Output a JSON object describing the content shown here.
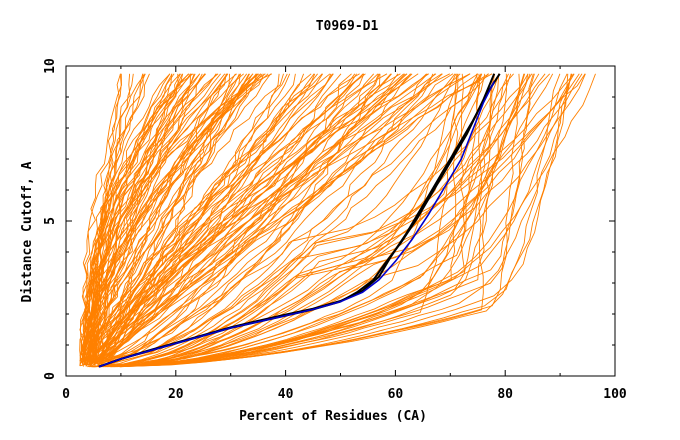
{
  "chart_data": {
    "type": "line",
    "title": "T0969-D1",
    "xlabel": "Percent of Residues (CA)",
    "ylabel": "Distance Cutoff, A",
    "xlim": [
      0,
      100
    ],
    "ylim": [
      0,
      10
    ],
    "x_ticks": [
      0,
      20,
      40,
      60,
      80,
      100
    ],
    "y_ticks": [
      0,
      5,
      10
    ],
    "x_tick_labels": [
      "0",
      "20",
      "40",
      "60",
      "80",
      "100"
    ],
    "y_tick_labels": [
      "0",
      "5",
      "10"
    ],
    "y_max_plotted": 9.75,
    "grid": false,
    "colors": {
      "background_models": "#ff8000",
      "highlight_black": "#000000",
      "highlight_blue": "#0000cc"
    },
    "series_families": [
      {
        "name": "steep-left-group",
        "count": 55,
        "start": [
          3,
          0.3
        ],
        "mid": [
          8,
          6
        ],
        "end": [
          25,
          9.75
        ],
        "color": "#ff8000"
      },
      {
        "name": "central-fan-group",
        "count": 75,
        "start": [
          3,
          0.3
        ],
        "mid": [
          35,
          4.5
        ],
        "end": [
          70,
          9.75
        ],
        "color": "#ff8000"
      },
      {
        "name": "right-shallow-group",
        "count": 45,
        "start": [
          5,
          0.3
        ],
        "mid": [
          60,
          3.5
        ],
        "end": [
          97,
          9.75
        ],
        "color": "#ff8000"
      }
    ],
    "series": [
      {
        "name": "highlight-black-1",
        "color": "#000000",
        "points": [
          [
            6,
            0.3
          ],
          [
            10,
            0.55
          ],
          [
            15,
            0.8
          ],
          [
            20,
            1.05
          ],
          [
            25,
            1.3
          ],
          [
            30,
            1.55
          ],
          [
            35,
            1.75
          ],
          [
            40,
            1.95
          ],
          [
            45,
            2.15
          ],
          [
            50,
            2.4
          ],
          [
            53,
            2.7
          ],
          [
            56,
            3.1
          ],
          [
            58,
            3.6
          ],
          [
            61,
            4.3
          ],
          [
            64,
            5.1
          ],
          [
            67,
            6.0
          ],
          [
            70,
            6.9
          ],
          [
            73,
            7.8
          ],
          [
            76,
            8.9
          ],
          [
            78,
            9.75
          ]
        ]
      },
      {
        "name": "highlight-black-2",
        "color": "#000000",
        "points": [
          [
            6,
            0.3
          ],
          [
            10,
            0.55
          ],
          [
            15,
            0.82
          ],
          [
            20,
            1.07
          ],
          [
            25,
            1.32
          ],
          [
            30,
            1.57
          ],
          [
            35,
            1.78
          ],
          [
            40,
            1.98
          ],
          [
            45,
            2.17
          ],
          [
            50,
            2.42
          ],
          [
            54,
            2.75
          ],
          [
            57,
            3.2
          ],
          [
            59,
            3.8
          ],
          [
            62,
            4.6
          ],
          [
            65,
            5.5
          ],
          [
            68,
            6.4
          ],
          [
            71,
            7.3
          ],
          [
            74,
            8.2
          ],
          [
            77,
            9.2
          ],
          [
            79,
            9.75
          ]
        ]
      },
      {
        "name": "highlight-blue",
        "color": "#0000cc",
        "points": [
          [
            6,
            0.3
          ],
          [
            10,
            0.55
          ],
          [
            15,
            0.8
          ],
          [
            20,
            1.05
          ],
          [
            25,
            1.3
          ],
          [
            30,
            1.55
          ],
          [
            35,
            1.75
          ],
          [
            40,
            1.95
          ],
          [
            45,
            2.15
          ],
          [
            50,
            2.4
          ],
          [
            54,
            2.7
          ],
          [
            57,
            3.1
          ],
          [
            60,
            3.7
          ],
          [
            63,
            4.4
          ],
          [
            66,
            5.2
          ],
          [
            69,
            6.1
          ],
          [
            72,
            7.0
          ],
          [
            74,
            7.9
          ],
          [
            76,
            8.8
          ],
          [
            78,
            9.5
          ]
        ]
      }
    ]
  }
}
